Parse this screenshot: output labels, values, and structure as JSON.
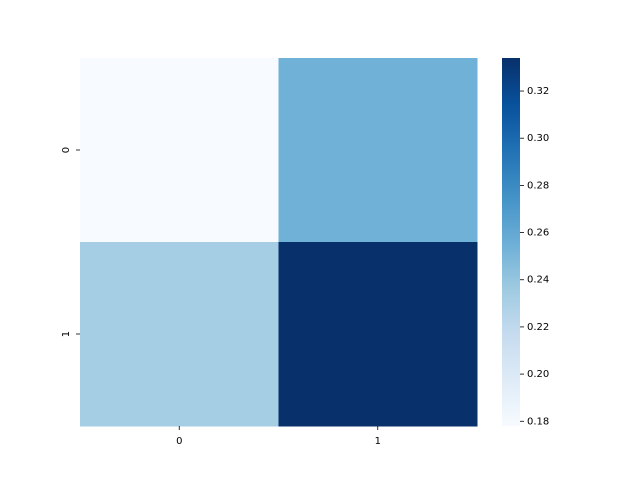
{
  "chart_data": {
    "type": "heatmap",
    "x_categories": [
      "0",
      "1"
    ],
    "y_categories": [
      "0",
      "1"
    ],
    "values": [
      [
        0.178,
        0.254
      ],
      [
        0.233,
        0.334
      ]
    ],
    "colormap": "Blues",
    "clim": [
      0.178,
      0.334
    ],
    "cticks": [
      0.18,
      {
        "value": 0.2,
        "label": "0.20"
      },
      0.22,
      0.24,
      0.26,
      0.28,
      {
        "value": 0.3,
        "label": "0.30"
      },
      0.32
    ]
  }
}
